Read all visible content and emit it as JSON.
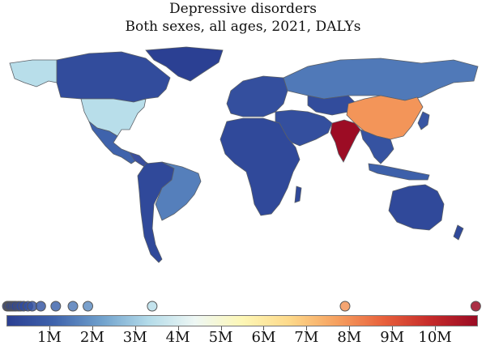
{
  "title": "Depressive disorders",
  "subtitle": "Both sexes, all ages, 2021, DALYs",
  "legend": {
    "ticks": [
      "1M",
      "2M",
      "3M",
      "4M",
      "5M",
      "6M",
      "7M",
      "8M",
      "9M",
      "10M"
    ],
    "tick_values": [
      1,
      2,
      3,
      4,
      5,
      6,
      7,
      8,
      9,
      10
    ],
    "max_value": 11,
    "colors": [
      "#2b3f93",
      "#3f63ac",
      "#6fa0cc",
      "#b3dbe9",
      "#eef7f4",
      "#fdf7b6",
      "#fdd98a",
      "#f6a160",
      "#e8613c",
      "#c62b2a",
      "#9a0b24"
    ],
    "markers": [
      0.02,
      0.05,
      0.08,
      0.1,
      0.14,
      0.18,
      0.22,
      0.28,
      0.33,
      0.4,
      0.5,
      0.6,
      0.8,
      1.15,
      1.55,
      1.9,
      3.4,
      7.9,
      10.95
    ]
  },
  "map": {
    "ocean_color": "#ffffff",
    "border_color": "#5a5f66",
    "regions": [
      {
        "name": "China",
        "value": 7.9
      },
      {
        "name": "India",
        "value": 10.95
      },
      {
        "name": "United States",
        "value": 3.4
      },
      {
        "name": "Alaska",
        "value": 3.4
      },
      {
        "name": "Brazil",
        "value": 1.6
      },
      {
        "name": "Russia",
        "value": 1.5
      },
      {
        "name": "Mexico",
        "value": 1.1
      },
      {
        "name": "Canada",
        "value": 0.4
      },
      {
        "name": "Greenland",
        "value": 0.02
      },
      {
        "name": "Australia",
        "value": 0.3
      },
      {
        "name": "Indonesia",
        "value": 1.0
      },
      {
        "name": "Kazakhstan",
        "value": 0.4
      },
      {
        "name": "Europe",
        "value": 0.5
      },
      {
        "name": "Africa",
        "value": 0.3
      },
      {
        "name": "Middle East",
        "value": 0.5
      },
      {
        "name": "South America",
        "value": 0.3
      },
      {
        "name": "Southeast Asia",
        "value": 0.6
      },
      {
        "name": "Japan",
        "value": 0.7
      }
    ]
  }
}
